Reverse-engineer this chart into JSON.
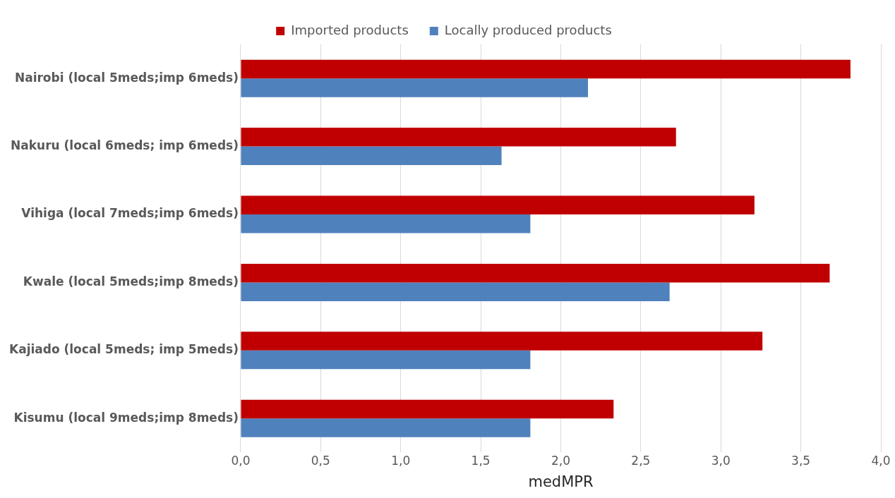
{
  "chart_data": {
    "type": "bar",
    "orientation": "horizontal",
    "xlabel": "medMPR",
    "categories": [
      "Nairobi (local 5meds;imp 6meds)",
      "Nakuru (local 6meds; imp 6meds)",
      "Vihiga (local 7meds;imp 6meds)",
      "Kwale (local 5meds;imp 8meds)",
      "Kajiado (local 5meds; imp 5meds)",
      "Kisumu (local 9meds;imp 8meds)"
    ],
    "series": [
      {
        "name": "Imported products",
        "color": "#c00000",
        "values": [
          3.81,
          2.72,
          3.21,
          3.68,
          3.26,
          2.33
        ]
      },
      {
        "name": "Locally produced products",
        "color": "#4f81bd",
        "values": [
          2.17,
          1.63,
          1.81,
          2.68,
          1.81,
          1.81
        ]
      }
    ],
    "xlim": [
      0,
      4
    ],
    "xticks": [
      {
        "value": 0,
        "label": "0,0"
      },
      {
        "value": 0.5,
        "label": "0,5"
      },
      {
        "value": 1,
        "label": "1,0"
      },
      {
        "value": 1.5,
        "label": "1,5"
      },
      {
        "value": 2,
        "label": "2,0"
      },
      {
        "value": 2.5,
        "label": "2,5"
      },
      {
        "value": 3,
        "label": "3,0"
      },
      {
        "value": 3.5,
        "label": "3,5"
      },
      {
        "value": 4,
        "label": "4,0"
      }
    ],
    "grid": "x",
    "legend": "top"
  }
}
